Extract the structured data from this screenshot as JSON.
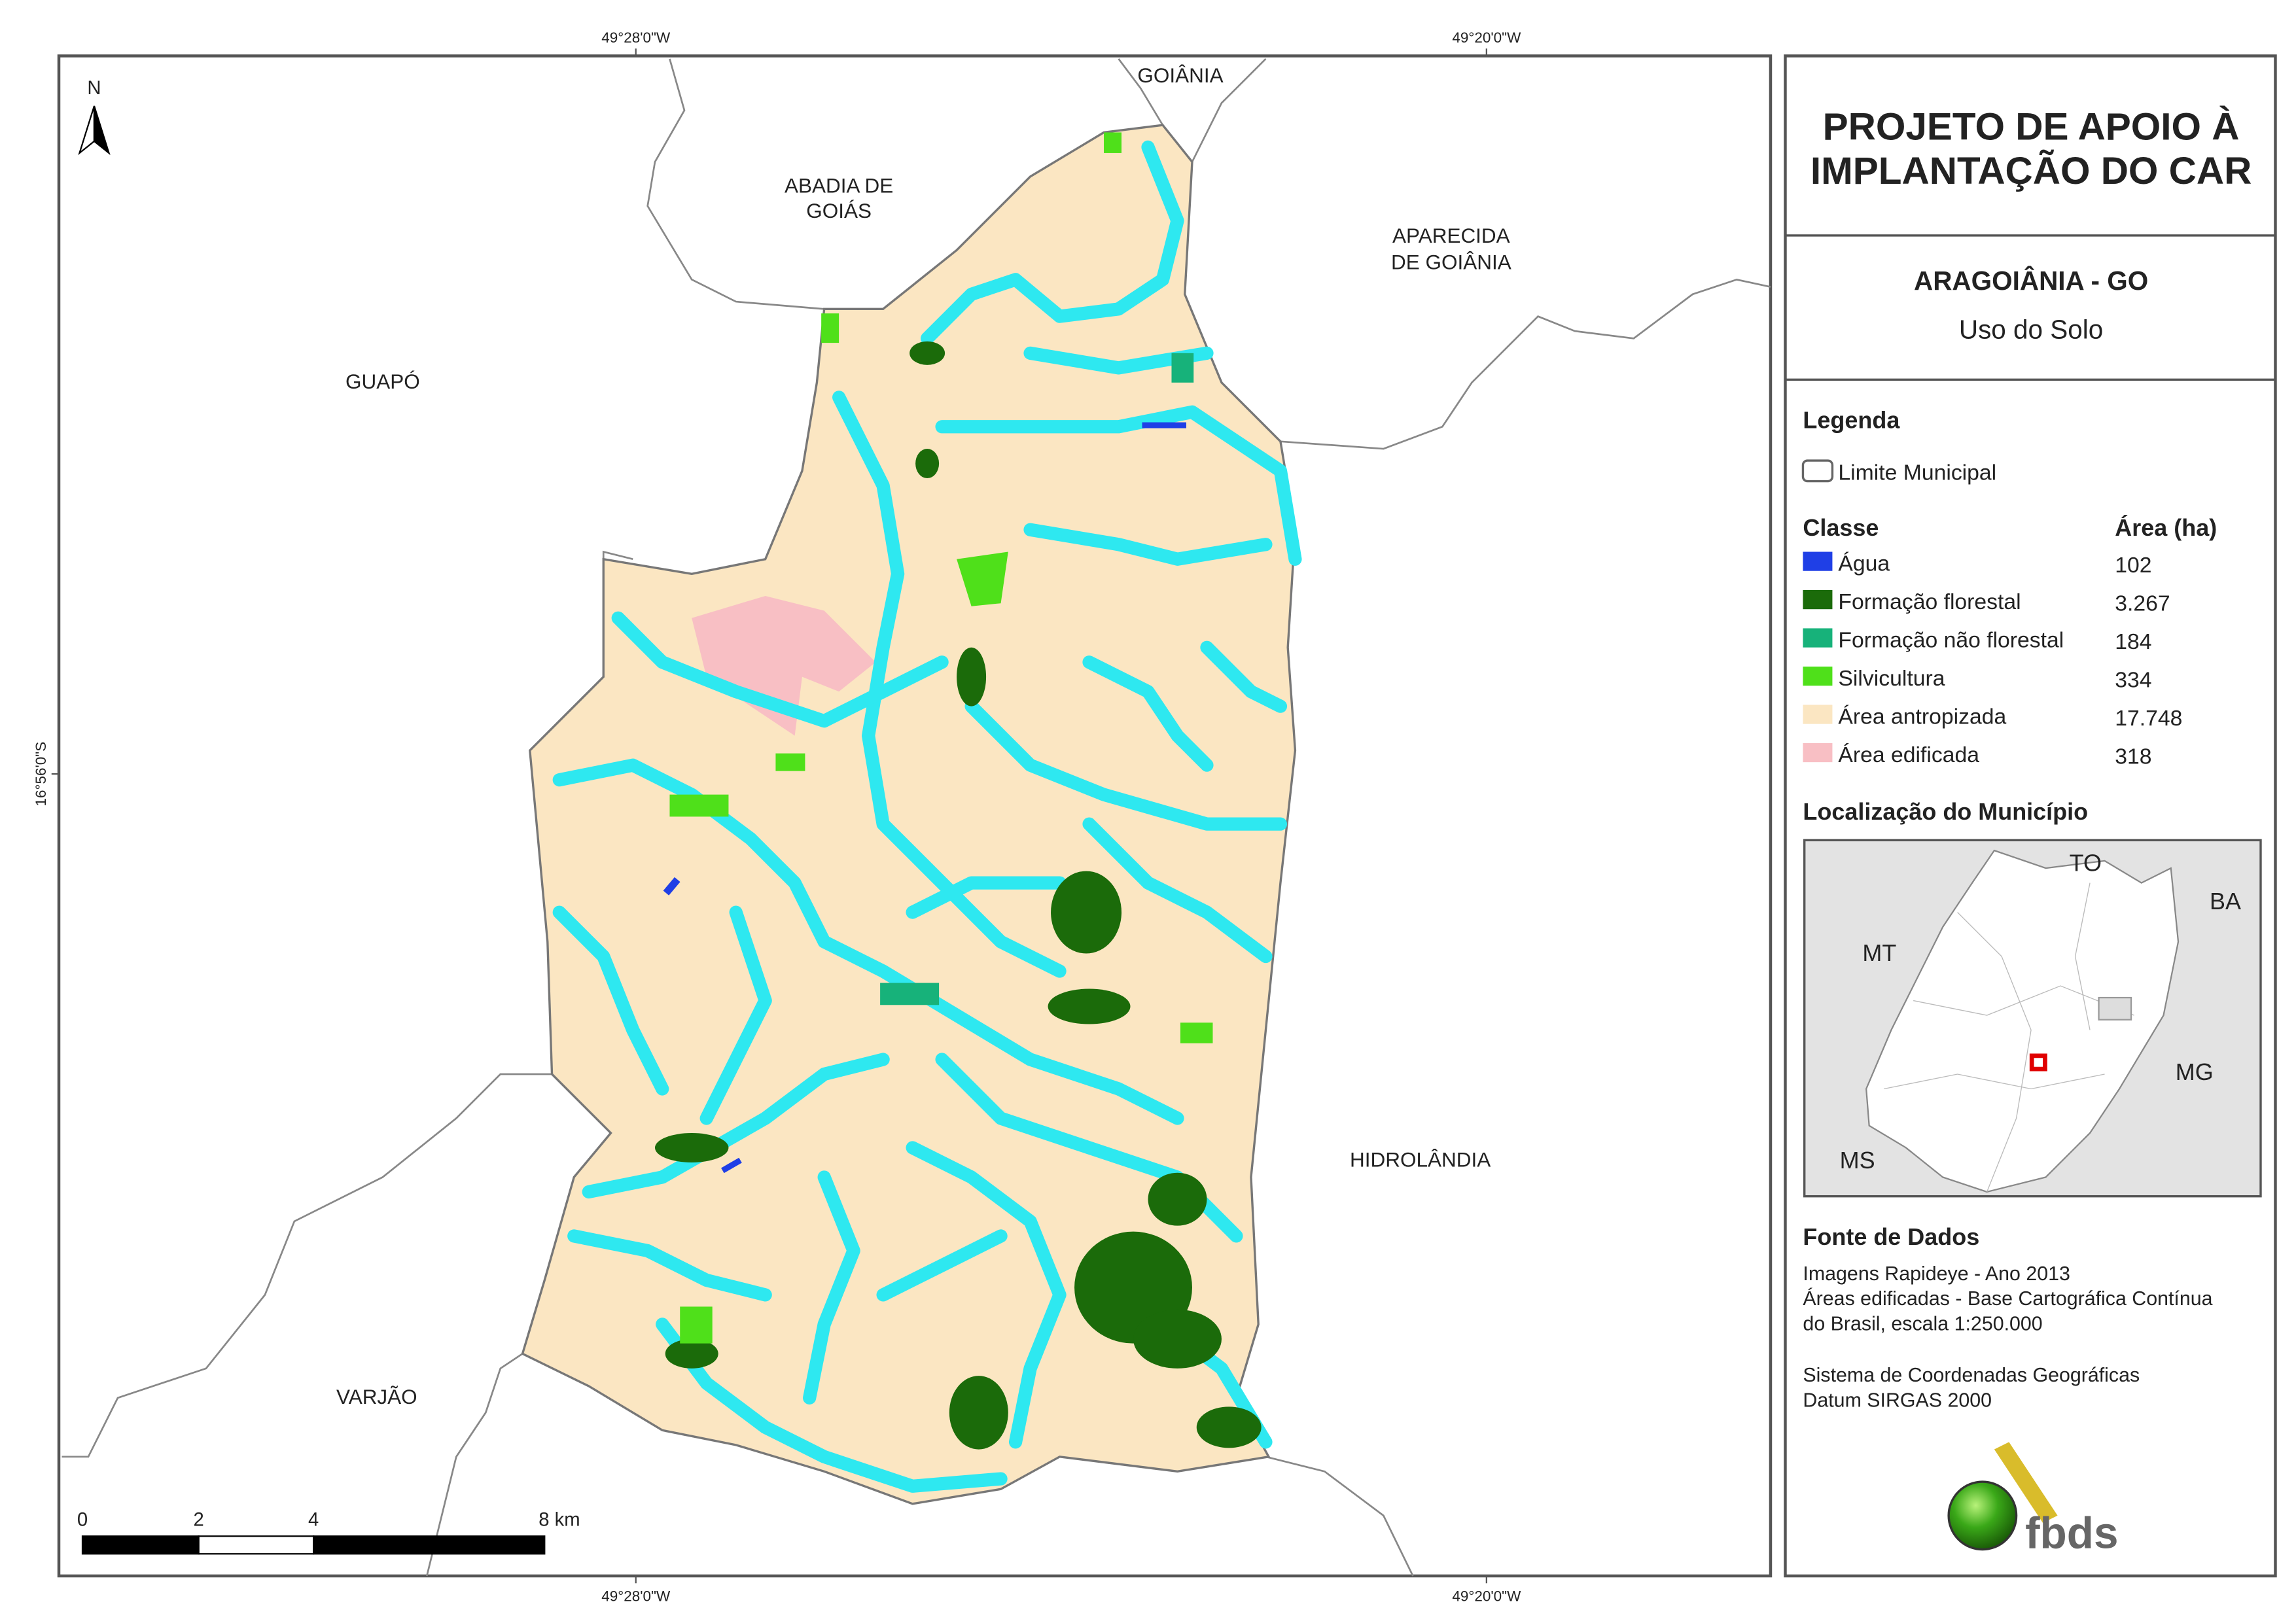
{
  "header": {
    "title_lines": [
      "PROJETO DE APOIO À",
      "IMPLANTAÇÃO DO CAR"
    ]
  },
  "municipality": {
    "name": "ARAGOIÂNIA - GO",
    "theme": "Uso do Solo"
  },
  "legend": {
    "title": "Legenda",
    "boundary": "Limite Municipal",
    "class_header": "Classe",
    "area_header": "Área (ha)",
    "classes": [
      {
        "name": "Água",
        "area": "102",
        "color": "#1f3fe6"
      },
      {
        "name": "Formação florestal",
        "area": "3.267",
        "color": "#1b6b0a"
      },
      {
        "name": "Formação não florestal",
        "area": "184",
        "color": "#17b27a"
      },
      {
        "name": "Silvicultura",
        "area": "334",
        "color": "#4fe01a"
      },
      {
        "name": "Área antropizada",
        "area": "17.748",
        "color": "#fbe6c2"
      },
      {
        "name": "Área edificada",
        "area": "318",
        "color": "#f8bfc4"
      }
    ]
  },
  "location": {
    "title": "Localização do Município",
    "states": [
      "TO",
      "BA",
      "MT",
      "MG",
      "MS"
    ]
  },
  "sources": {
    "title": "Fonte de Dados",
    "lines": [
      "Imagens Rapideye - Ano 2013",
      "Áreas edificadas - Base Cartográfica Contínua",
      "do Brasil, escala 1:250.000",
      "Sistema de Coordenadas Geográficas",
      "Datum SIRGAS 2000"
    ]
  },
  "map": {
    "north": "N",
    "neighbors": [
      "GOIÂNIA",
      "ABADIA DE",
      "GOIÁS",
      "APARECIDA",
      "DE GOIÂNIA",
      "GUAPÓ",
      "HIDROLÂNDIA",
      "VARJÃO"
    ],
    "coordinates": {
      "longitudes": [
        "49°28'0\"W",
        "49°20'0\"W"
      ],
      "latitude": "16°56'0\"S"
    },
    "scale_labels": [
      "0",
      "2",
      "4",
      "8 km"
    ]
  },
  "logo": "fbds"
}
